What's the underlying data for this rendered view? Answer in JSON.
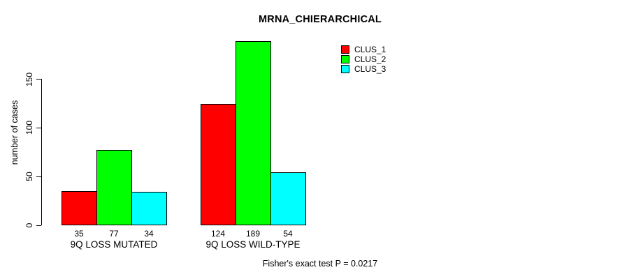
{
  "title": "MRNA_CHIERARCHICAL",
  "footnote": "Fisher's exact test P = 0.0217",
  "legend": {
    "items": [
      {
        "label": "CLUS_1",
        "color": "#FF0000"
      },
      {
        "label": "CLUS_2",
        "color": "#00FF00"
      },
      {
        "label": "CLUS_3",
        "color": "#00FFFF"
      }
    ]
  },
  "chart_data": {
    "type": "bar",
    "title": "MRNA_CHIERARCHICAL",
    "xlabel": "",
    "ylabel": "number of cases",
    "categories": [
      "9Q LOSS MUTATED",
      "9Q LOSS WILD-TYPE"
    ],
    "series": [
      {
        "name": "CLUS_1",
        "color": "#FF0000",
        "values": [
          35,
          124
        ]
      },
      {
        "name": "CLUS_2",
        "color": "#00FF00",
        "values": [
          77,
          189
        ]
      },
      {
        "name": "CLUS_3",
        "color": "#00FFFF",
        "values": [
          34,
          54
        ]
      }
    ],
    "bar_value_labels": [
      [
        "35",
        "77",
        "34"
      ],
      [
        "124",
        "189",
        "54"
      ]
    ],
    "ylim": [
      0,
      190
    ],
    "yticks": [
      0,
      50,
      100,
      150
    ],
    "grid": false,
    "legend_position": "top-right",
    "annotation": "Fisher's exact test P = 0.0217",
    "axis_color": "#000000",
    "bar_border_color": "#000000"
  }
}
